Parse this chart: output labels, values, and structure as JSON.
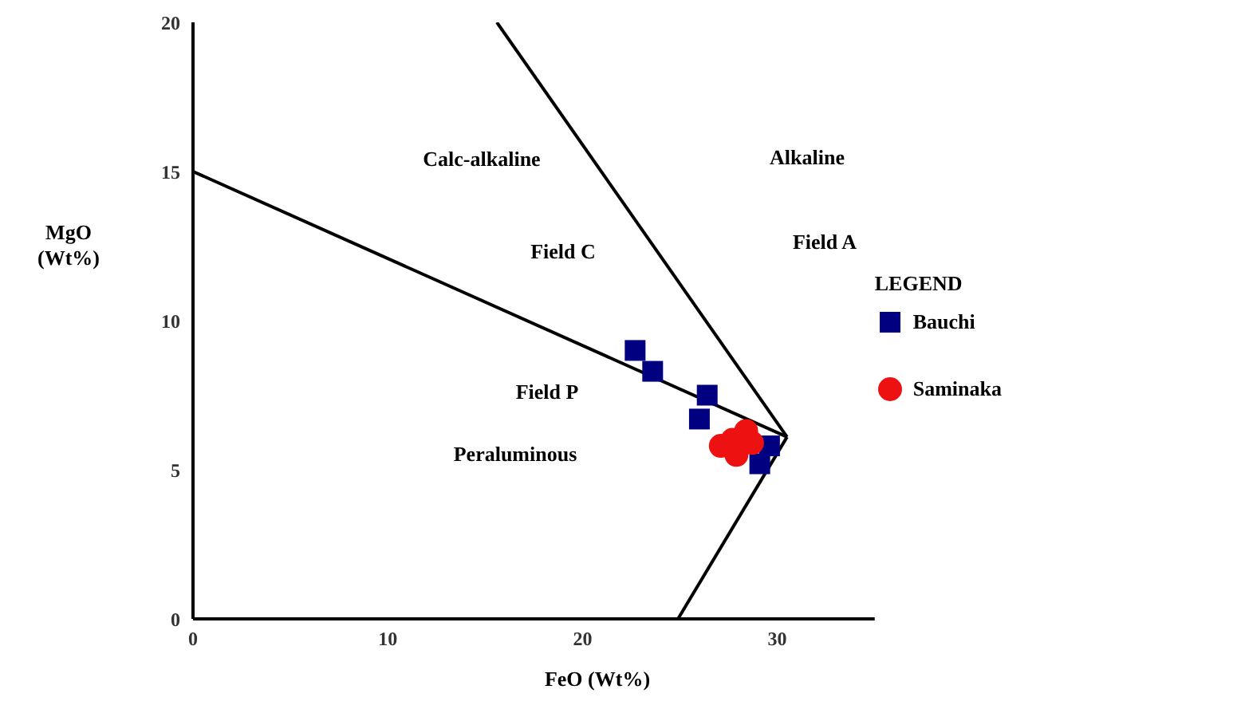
{
  "chart_data": {
    "type": "scatter",
    "xlabel": "FeO (Wt%)",
    "ylabel": "MgO (Wt%)",
    "legend_title": "LEGEND",
    "legend": "right",
    "grid": false,
    "xlim": [
      0,
      35
    ],
    "xticks": [
      0,
      10,
      20,
      30
    ],
    "ylim": [
      0,
      20
    ],
    "yticks": [
      0,
      5,
      10,
      15,
      20
    ],
    "series": [
      {
        "type": "line",
        "color": "#000000",
        "x": [
          0,
          30.5
        ],
        "values": [
          15,
          6.1
        ]
      },
      {
        "type": "line",
        "color": "#000000",
        "x": [
          15.6,
          30.5
        ],
        "values": [
          20,
          6.1
        ]
      },
      {
        "type": "line",
        "color": "#000000",
        "x": [
          24.9,
          30.5
        ],
        "values": [
          0,
          6.1
        ]
      },
      {
        "name": "Bauchi",
        "color": "#000080",
        "marker": "square",
        "x": [
          22.7,
          23.6,
          26.4,
          26.0,
          29.6,
          29.1
        ],
        "values": [
          9.0,
          8.3,
          7.5,
          6.7,
          5.8,
          5.2
        ]
      },
      {
        "name": "Saminaka",
        "color": "#ee1111",
        "marker": "circle",
        "x": [
          27.1,
          27.7,
          28.4,
          27.9,
          28.7
        ],
        "values": [
          5.8,
          6.0,
          6.3,
          5.5,
          5.9
        ]
      }
    ],
    "annotations": [
      "Calc-alkaline",
      "Alkaline",
      "Field C",
      "Field A",
      "Field P",
      "Peraluminous"
    ]
  }
}
